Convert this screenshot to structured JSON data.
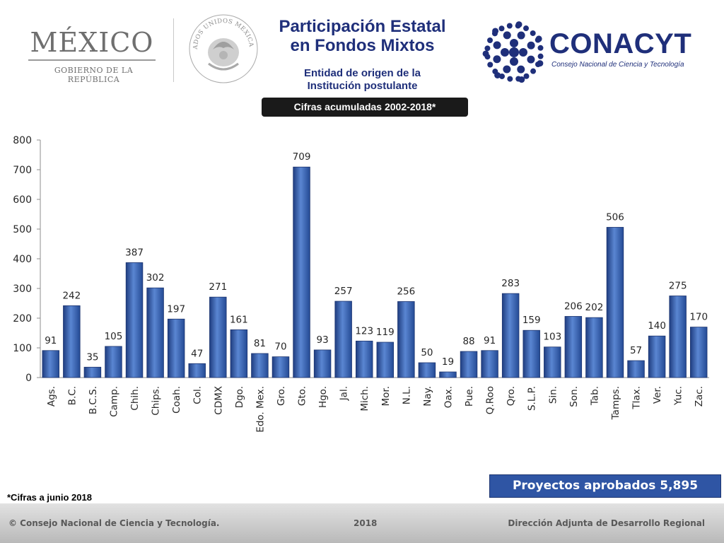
{
  "header": {
    "country_logo": "MÉXICO",
    "government_line": "GOBIERNO DE LA REPÚBLICA",
    "seal_text": "ESTADOS UNIDOS MEXICANOS",
    "title_line1": "Participación Estatal",
    "title_line2": "en Fondos Mixtos",
    "subtitle_line1": "Entidad de origen de la",
    "subtitle_line2": "Institución postulante",
    "badge": "Cifras acumuladas 2002-2018*",
    "conacyt_name": "CONACYT",
    "conacyt_sub": "Consejo Nacional de Ciencia y Tecnología"
  },
  "chart_data": {
    "type": "bar",
    "categories": [
      "Ags.",
      "B.C.",
      "B.C.S.",
      "Camp.",
      "Chih.",
      "Chips.",
      "Coah.",
      "Col.",
      "CDMX",
      "Dgo.",
      "Edo. Mex.",
      "Gro.",
      "Gto.",
      "Hgo.",
      "Jal.",
      "Mich.",
      "Mor.",
      "N.L.",
      "Nay.",
      "Oax.",
      "Pue.",
      "Q.Roo",
      "Qro.",
      "S.L.P.",
      "Sin.",
      "Son.",
      "Tab.",
      "Tamps.",
      "Tlax.",
      "Ver.",
      "Yuc.",
      "Zac."
    ],
    "values": [
      91,
      242,
      35,
      105,
      387,
      302,
      197,
      47,
      271,
      161,
      81,
      70,
      709,
      93,
      257,
      123,
      119,
      256,
      50,
      19,
      88,
      91,
      283,
      159,
      103,
      206,
      202,
      506,
      57,
      140,
      275,
      170
    ],
    "yticks": [
      "0",
      "100",
      "200",
      "300",
      "400",
      "500",
      "600",
      "700",
      "800"
    ],
    "ylim": [
      0,
      800
    ],
    "grid": false,
    "bar_color": "#3b64b4",
    "label_color": "#262626"
  },
  "summary": {
    "total": "Proyectos aprobados  5,895"
  },
  "footnote": "*Cifras a junio 2018",
  "footer": {
    "left": "© Consejo Nacional de Ciencia y Tecnología.",
    "year": "2018",
    "right": "Dirección Adjunta de Desarrollo Regional"
  }
}
